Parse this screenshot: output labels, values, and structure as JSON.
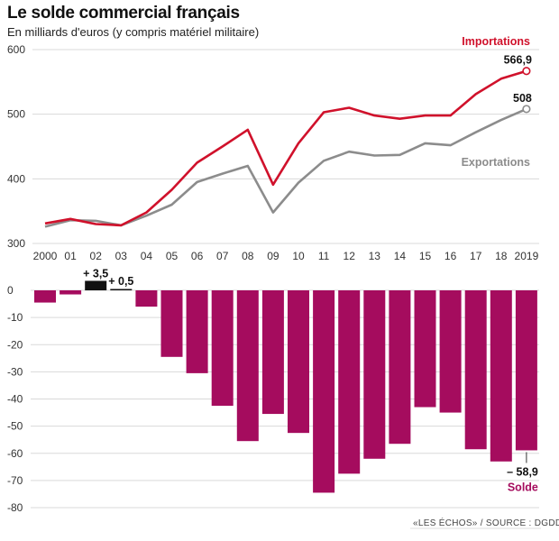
{
  "title": "Le solde commercial français",
  "subtitle": "En milliards d'euros (y compris matériel militaire)",
  "source": "«LES ÉCHOS» / SOURCE : DGDDI",
  "colors": {
    "imports": "#d0112b",
    "exports": "#8c8c8c",
    "balance": "#a50c5e",
    "positive": "#111111",
    "grid": "#d9d9d9"
  },
  "chart_data": [
    {
      "type": "line",
      "categories": [
        "2000",
        "01",
        "02",
        "03",
        "04",
        "05",
        "06",
        "07",
        "08",
        "09",
        "10",
        "11",
        "12",
        "13",
        "14",
        "15",
        "16",
        "17",
        "18",
        "2019"
      ],
      "ylim": [
        300,
        600
      ],
      "yticks": [
        300,
        400,
        500,
        600
      ],
      "grid": true,
      "series": [
        {
          "name": "Importations",
          "values": [
            331,
            338,
            330,
            328,
            348,
            383,
            425,
            450,
            476,
            391,
            455,
            503,
            510,
            498,
            493,
            498,
            498,
            531,
            555,
            566.9
          ]
        },
        {
          "name": "Exportations",
          "values": [
            326,
            336,
            335,
            328,
            343,
            360,
            395,
            408,
            420,
            348,
            394,
            428,
            442,
            436,
            437,
            455,
            452,
            472,
            491,
            508
          ]
        }
      ],
      "end_labels": {
        "Importations": "566,9",
        "Exportations": "508"
      }
    },
    {
      "type": "bar",
      "name": "Solde",
      "categories": [
        "2000",
        "01",
        "02",
        "03",
        "04",
        "05",
        "06",
        "07",
        "08",
        "09",
        "10",
        "11",
        "12",
        "13",
        "14",
        "15",
        "16",
        "17",
        "18",
        "2019"
      ],
      "values": [
        -4.5,
        -1.5,
        3.5,
        0.5,
        -6,
        -24.5,
        -30.5,
        -42.5,
        -55.5,
        -45.5,
        -52.5,
        -74.5,
        -67.5,
        -62,
        -56.5,
        -43,
        -45,
        -58.5,
        -63,
        -58.9
      ],
      "ylim": [
        -80,
        0
      ],
      "yticks": [
        0,
        -10,
        -20,
        -30,
        -40,
        -50,
        -60,
        -70,
        -80
      ],
      "annotations": [
        {
          "index": 2,
          "label": "+ 3,5"
        },
        {
          "index": 3,
          "label": "+ 0,5"
        },
        {
          "index": 19,
          "label": "– 58,9"
        }
      ],
      "legend": "Solde"
    }
  ]
}
